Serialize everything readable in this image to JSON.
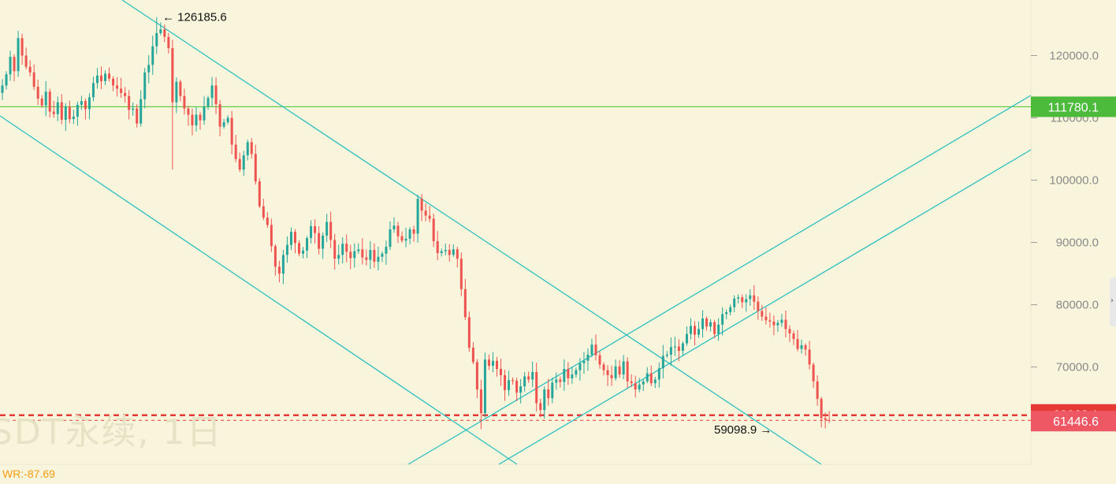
{
  "chart_data": {
    "type": "candlestick",
    "title": "",
    "xlabel": "",
    "ylabel": "",
    "ylim": [
      56000,
      130000
    ],
    "y_ticks": [
      "120000.0",
      "110000.0",
      "100000.0",
      "90000.0",
      "80000.0",
      "70000.0"
    ],
    "grid": false,
    "bullish_color": "#26a69a",
    "bearish_color": "#ef5350",
    "trendline_color": "#2ebfbf",
    "candle_closes": [
      115200,
      117000,
      119800,
      117500,
      122800,
      120000,
      118200,
      117300,
      115000,
      113100,
      112000,
      114200,
      111000,
      110600,
      112500,
      109700,
      111800,
      109800,
      110200,
      112100,
      112700,
      111400,
      113300,
      115600,
      116800,
      115900,
      117100,
      116300,
      115200,
      114700,
      114000,
      113500,
      111300,
      111500,
      109100,
      113000,
      117300,
      118500,
      121500,
      123600,
      124200,
      123000,
      121200,
      112500,
      115800,
      113500,
      111500,
      110500,
      108800,
      110500,
      109600,
      111800,
      113200,
      115200,
      112200,
      108600,
      109300,
      110000,
      105700,
      103400,
      101700,
      104000,
      106100,
      104200,
      99800,
      95800,
      94000,
      92800,
      89400,
      86100,
      85000,
      88000,
      89600,
      91700,
      89900,
      88200,
      88700,
      90700,
      92600,
      91500,
      89000,
      91100,
      93300,
      90400,
      87400,
      88000,
      89800,
      88500,
      87500,
      88600,
      88900,
      87600,
      87200,
      88800,
      86900,
      87700,
      88200,
      89300,
      92100,
      92700,
      91000,
      90300,
      90600,
      92100,
      91400,
      97000,
      95100,
      94300,
      93800,
      90200,
      88300,
      88600,
      88800,
      88000,
      88900,
      87400,
      82500,
      78000,
      73100,
      70800,
      66400,
      62600,
      71200,
      70200,
      71000,
      69700,
      68700,
      66300,
      67900,
      67800,
      65900,
      66900,
      68500,
      68000,
      69200,
      64200,
      63100,
      66400,
      65000,
      67500,
      68000,
      67600,
      69700,
      68200,
      68800,
      69500,
      70600,
      71000,
      72000,
      73600,
      71900,
      70400,
      69500,
      68700,
      68200,
      70100,
      68800,
      70900,
      67700,
      67400,
      66400,
      67200,
      67700,
      69000,
      67400,
      68000,
      69800,
      71800,
      72000,
      73200,
      73300,
      72600,
      73800,
      75300,
      76600,
      75200,
      76100,
      77800,
      76500,
      77200,
      75300,
      76800,
      78500,
      78800,
      79600,
      81000,
      81200,
      80400,
      80900,
      81500,
      80500,
      79000,
      78100,
      77500,
      77300,
      76700,
      77100,
      77600,
      76100,
      75400,
      74500,
      72900,
      73500,
      72800,
      70400,
      67700,
      64900,
      61800,
      61500,
      61446.6
    ],
    "annotations": [
      {
        "text": "126185.6",
        "value": 126185.6,
        "arrow": "←"
      },
      {
        "text": "59098.9",
        "value": 59098.9,
        "arrow": "→"
      }
    ],
    "price_labels": [
      {
        "text": "111780.1",
        "value": 111780.1,
        "color": "#4cbb3c"
      },
      {
        "text": "62268.1",
        "value": 62268.1,
        "color": "#e53935"
      },
      {
        "text": "61446.6",
        "value": 61446.6,
        "color": "#ee5865"
      }
    ],
    "horizontal_lines": [
      {
        "value": 111780.1,
        "color": "#5ac83c",
        "style": "solid"
      },
      {
        "value": 62268.1,
        "color": "#e53935",
        "style": "dashed-thick"
      },
      {
        "value": 61446.6,
        "color": "#e53935",
        "style": "dashed-thin"
      }
    ],
    "indicator_label": "WR:-87.69",
    "watermark": "SDT永续, 1日"
  }
}
